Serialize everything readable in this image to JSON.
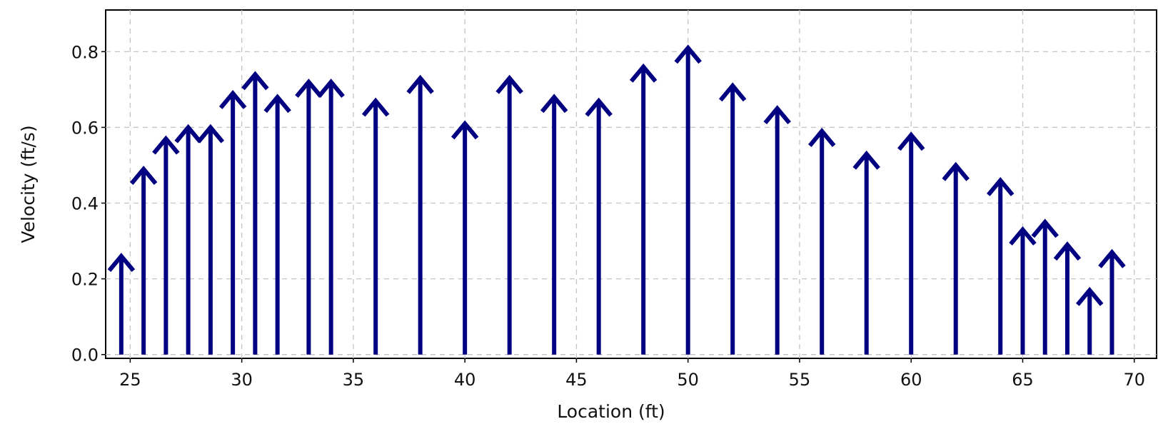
{
  "chart_data": {
    "type": "vector",
    "title": "",
    "xlabel": "Location (ft)",
    "ylabel": "Velocity (ft/s)",
    "xlim": [
      23.9,
      71
    ],
    "ylim": [
      -0.01,
      0.91
    ],
    "x_ticks": [
      25,
      30,
      35,
      40,
      45,
      50,
      55,
      60,
      65,
      70
    ],
    "x_tick_labels": [
      "25",
      "30",
      "35",
      "40",
      "45",
      "50",
      "55",
      "60",
      "65",
      "70"
    ],
    "y_ticks": [
      0.0,
      0.2,
      0.4,
      0.6,
      0.8
    ],
    "y_tick_labels": [
      "0.0",
      "0.2",
      "0.4",
      "0.6",
      "0.8"
    ],
    "grid": true,
    "series": [
      {
        "color": "#000080",
        "x": [
          24.6,
          25.6,
          26.6,
          27.6,
          28.6,
          29.6,
          30.6,
          31.6,
          33.0,
          34.0,
          36.0,
          38.0,
          40.0,
          42.0,
          44.0,
          46.0,
          48.0,
          50.0,
          52.0,
          54.0,
          56.0,
          58.0,
          60.0,
          62.0,
          64.0,
          65.0,
          66.0,
          67.0,
          68.0,
          69.0
        ],
        "values": [
          0.26,
          0.49,
          0.57,
          0.6,
          0.6,
          0.69,
          0.74,
          0.68,
          0.72,
          0.72,
          0.67,
          0.73,
          0.61,
          0.73,
          0.68,
          0.67,
          0.76,
          0.81,
          0.71,
          0.65,
          0.59,
          0.53,
          0.58,
          0.5,
          0.46,
          0.33,
          0.35,
          0.29,
          0.17,
          0.27
        ]
      }
    ]
  }
}
